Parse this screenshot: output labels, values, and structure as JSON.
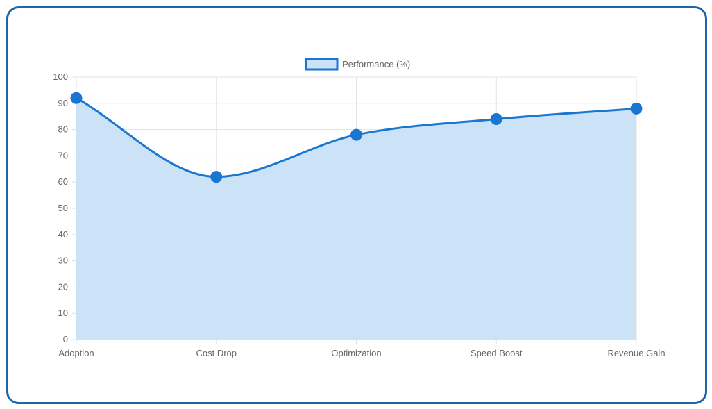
{
  "chart_data": {
    "type": "area",
    "categories": [
      "Adoption",
      "Cost Drop",
      "Optimization",
      "Speed Boost",
      "Revenue Gain"
    ],
    "series": [
      {
        "name": "Performance (%)",
        "values": [
          92,
          62,
          78,
          84,
          88
        ]
      }
    ],
    "ylim": [
      0,
      100
    ],
    "yticks": [
      "0",
      "10",
      "20",
      "30",
      "40",
      "50",
      "60",
      "70",
      "80",
      "90",
      "100"
    ],
    "grid": true,
    "legend": "top-center",
    "colors": {
      "line": "#1976d2",
      "fill": "#cce2f6",
      "grid": "#e3e3e3",
      "frame": "#1f63a8",
      "text": "#666666"
    }
  }
}
